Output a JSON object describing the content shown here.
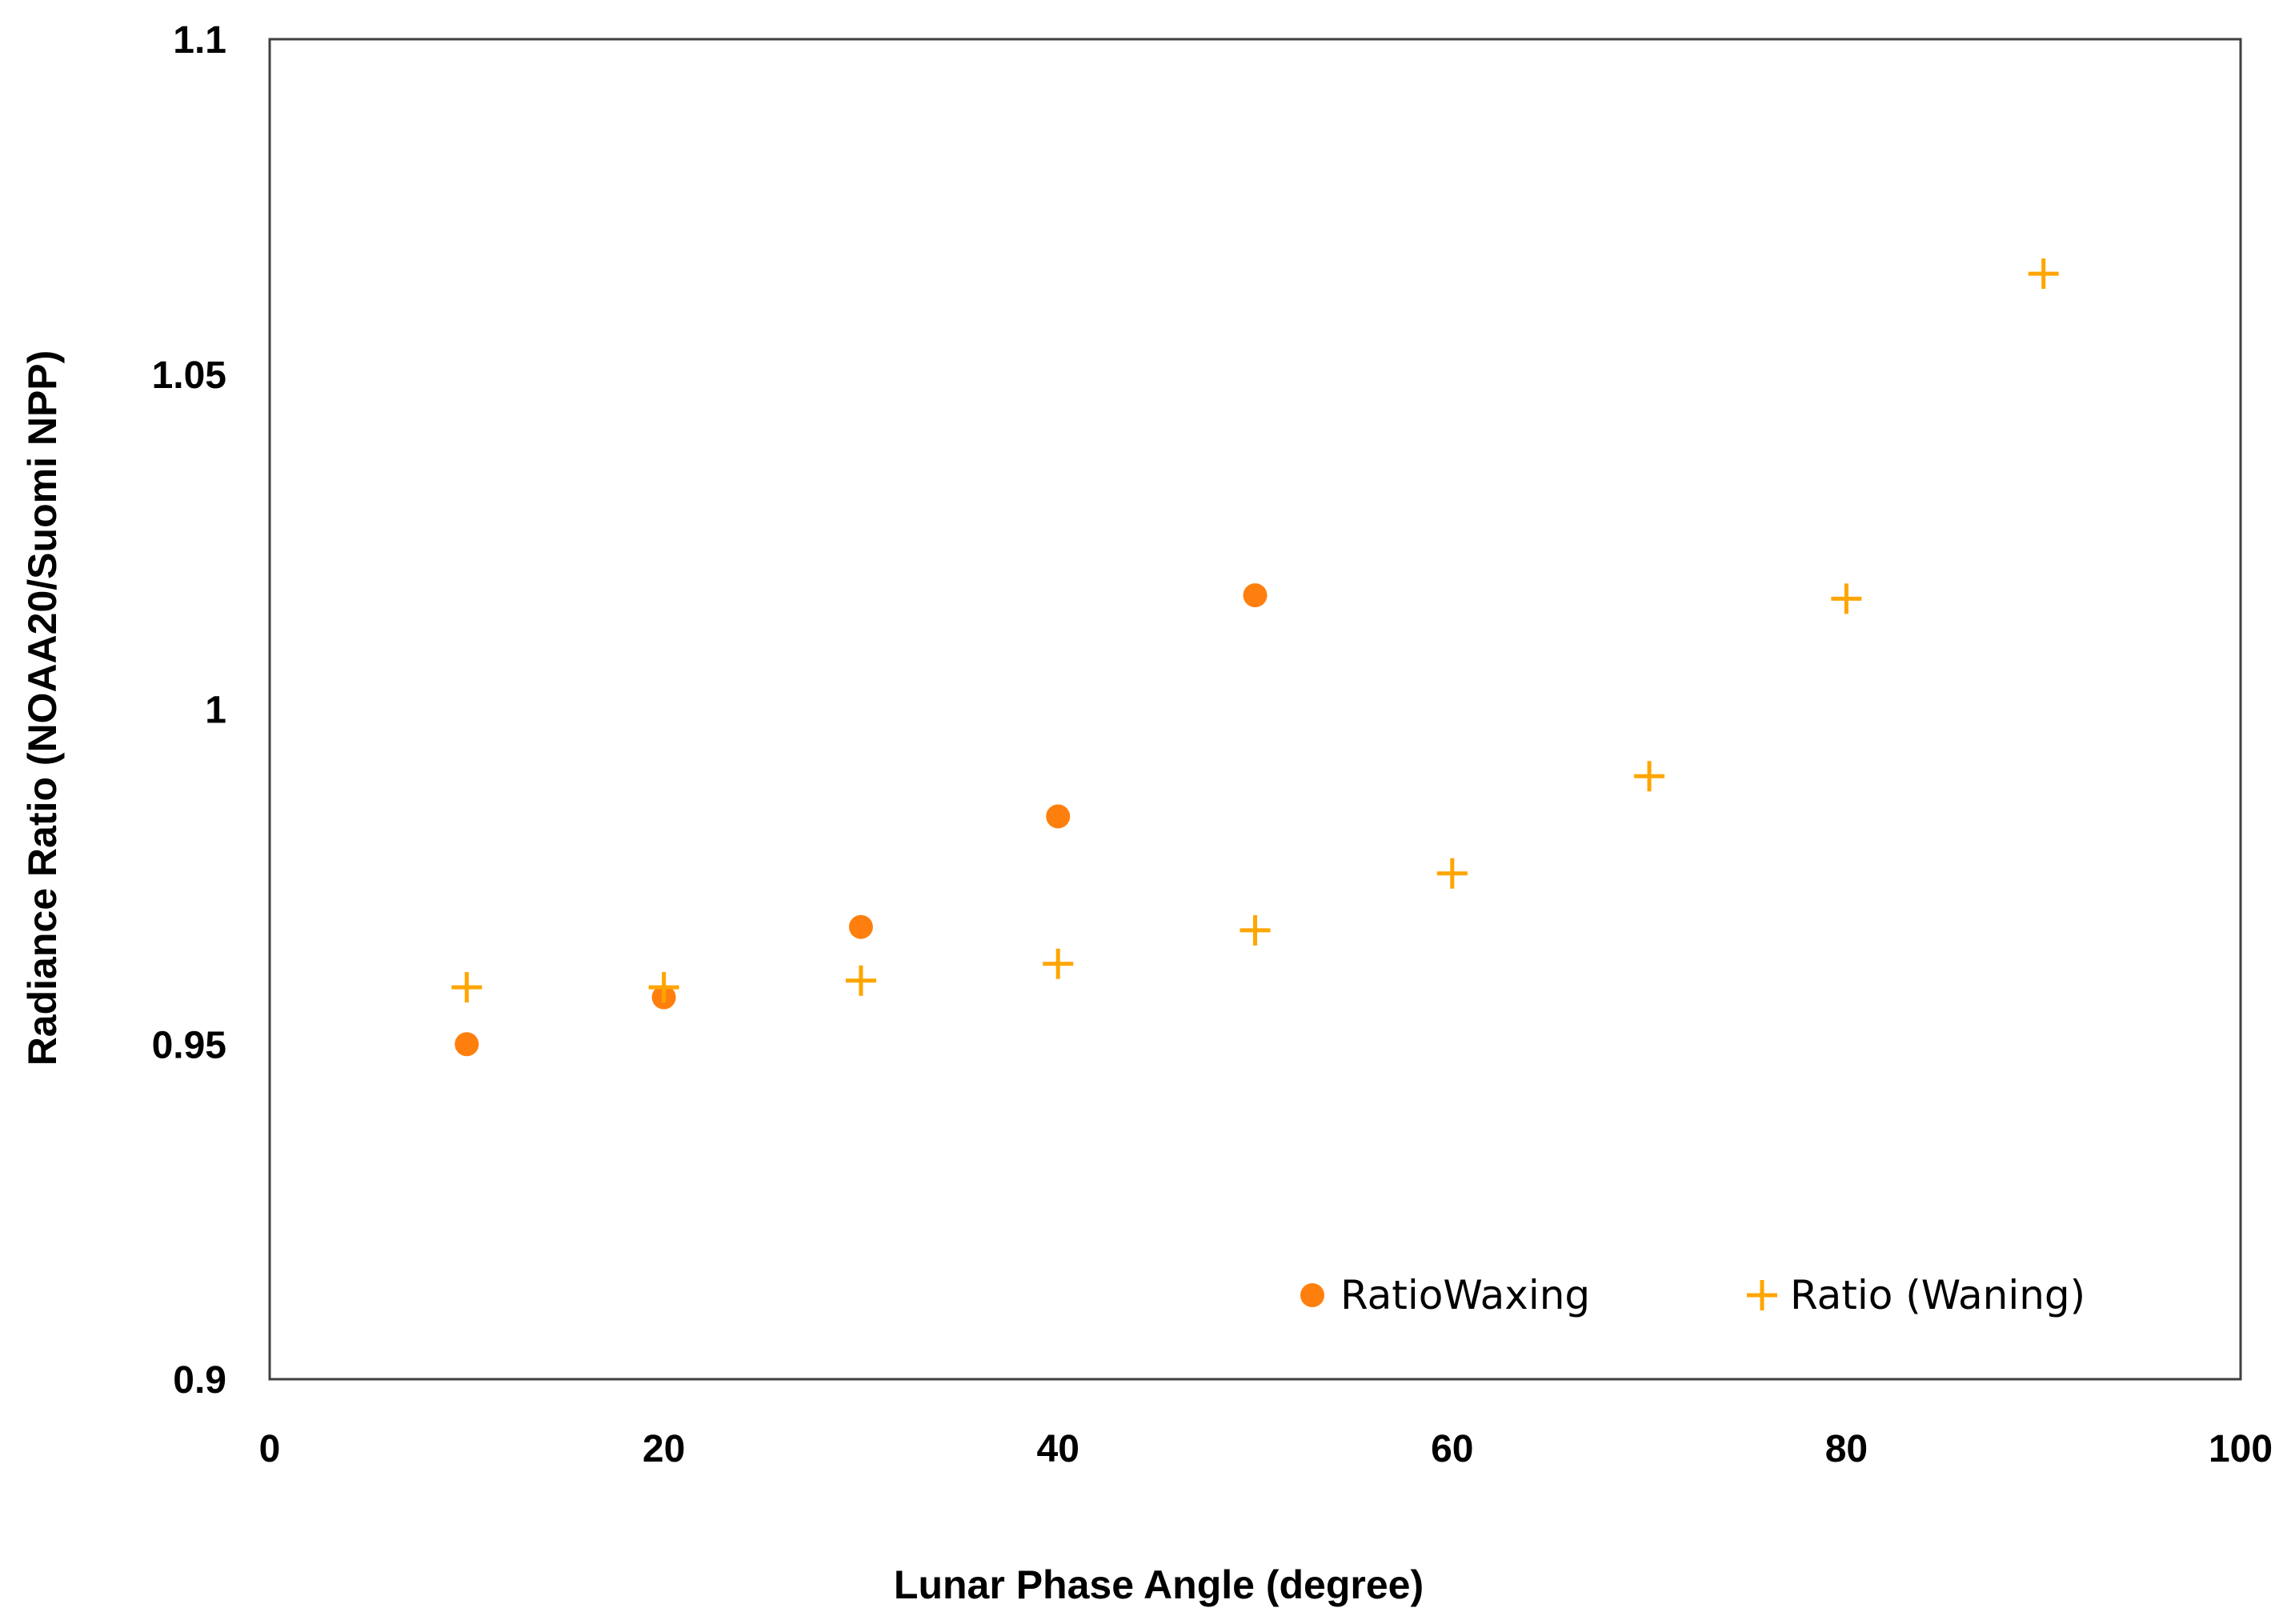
{
  "chart_data": {
    "type": "scatter",
    "title": "",
    "xlabel": "Lunar Phase Angle (degree)",
    "ylabel": "Radiance Ratio (NOAA20/Suomi NPP)",
    "xlim": [
      0,
      100
    ],
    "ylim": [
      0.9,
      1.1
    ],
    "xticks": [
      0,
      20,
      40,
      60,
      80,
      100
    ],
    "xtick_labels": [
      "0",
      "20",
      "40",
      "60",
      "80",
      "100"
    ],
    "yticks": [
      0.9,
      0.95,
      1.0,
      1.05,
      1.1
    ],
    "ytick_labels": [
      "0.9",
      "0.95",
      "1",
      "1.05",
      "1.1"
    ],
    "grid": false,
    "legend_position": "bottom-right",
    "series": [
      {
        "name": "RatioWaxing",
        "marker": "circle",
        "color": "#FF7F0E",
        "x": [
          10,
          20,
          30,
          40,
          50
        ],
        "y": [
          0.95,
          0.957,
          0.9675,
          0.984,
          1.017
        ]
      },
      {
        "name": "Ratio (Waning)",
        "marker": "plus",
        "color": "#FFA500",
        "x": [
          10,
          20,
          30,
          40,
          50,
          60,
          70,
          80,
          90
        ],
        "y": [
          0.9585,
          0.9585,
          0.9595,
          0.962,
          0.967,
          0.9755,
          0.99,
          1.0165,
          1.065
        ]
      }
    ]
  }
}
